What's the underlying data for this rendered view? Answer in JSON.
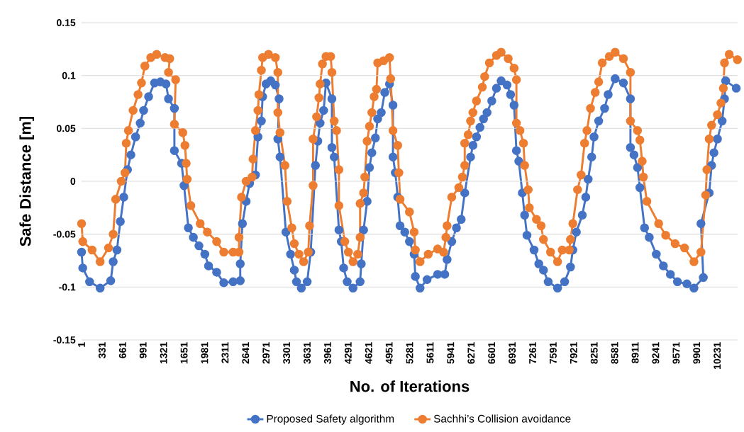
{
  "chart_data": {
    "type": "line",
    "xlabel": "No. of Iterations",
    "ylabel": "Safe Distance [m]",
    "xlim": [
      1,
      10560
    ],
    "ylim": [
      -0.15,
      0.15
    ],
    "xticks": [
      1,
      331,
      661,
      991,
      1321,
      1651,
      1981,
      2311,
      2641,
      2971,
      3301,
      3631,
      3961,
      4291,
      4621,
      4951,
      5281,
      5611,
      5941,
      6271,
      6601,
      6931,
      7261,
      7591,
      7921,
      8251,
      8581,
      8911,
      9241,
      9571,
      9901,
      10231
    ],
    "yticks": [
      -0.15,
      -0.1,
      -0.05,
      0,
      0.05,
      0.1,
      0.15
    ],
    "grid": "y",
    "legend": "bottom",
    "marker": "circle",
    "line_style": "solid",
    "series": [
      {
        "name": "Proposed Safety algorithm",
        "color": "#4472c4",
        "x": [
          1,
          20,
          130,
          300,
          470,
          510,
          570,
          625,
          680,
          740,
          795,
          870,
          945,
          1000,
          1080,
          1175,
          1270,
          1360,
          1400,
          1495,
          1495,
          1610,
          1650,
          1720,
          1800,
          1890,
          1985,
          2045,
          2175,
          2290,
          2440,
          2555,
          2555,
          2590,
          2650,
          2705,
          2800,
          2840,
          2895,
          2915,
          2970,
          3045,
          3120,
          3180,
          3160,
          3195,
          3275,
          3290,
          3365,
          3425,
          3460,
          3538,
          3632,
          3689,
          3765,
          3803,
          3840,
          3897,
          3935,
          4030,
          4030,
          4067,
          4143,
          4181,
          4219,
          4276,
          4370,
          4484,
          4503,
          4540,
          4597,
          4635,
          4673,
          4730,
          4767,
          4824,
          4881,
          4957,
          5013,
          5013,
          5051,
          5089,
          5127,
          5203,
          5278,
          5354,
          5373,
          5449,
          5562,
          5732,
          5846,
          5884,
          5959,
          6035,
          6111,
          6168,
          6262,
          6300,
          6357,
          6413,
          6470,
          6527,
          6603,
          6678,
          6754,
          6849,
          6906,
          6962,
          7000,
          7038,
          7095,
          7132,
          7170,
          7284,
          7360,
          7435,
          7511,
          7662,
          7776,
          7870,
          7908,
          7965,
          8060,
          8116,
          8154,
          8211,
          8249,
          8324,
          8419,
          8476,
          8589,
          8722,
          8835,
          8835,
          8892,
          8949,
          8987,
          9062,
          9138,
          9251,
          9365,
          9478,
          9592,
          9743,
          9857,
          10008,
          9970,
          10103,
          10141,
          10179,
          10235,
          10311,
          10349,
          10368,
          10538
        ],
        "values": [
          -0.067,
          -0.082,
          -0.095,
          -0.101,
          -0.094,
          -0.076,
          -0.065,
          -0.038,
          -0.015,
          0.011,
          0.025,
          0.042,
          0.055,
          0.067,
          0.08,
          0.093,
          0.094,
          0.092,
          0.078,
          0.069,
          0.029,
          0.017,
          -0.004,
          -0.044,
          -0.053,
          -0.061,
          -0.069,
          -0.08,
          -0.086,
          -0.096,
          -0.095,
          -0.094,
          -0.078,
          -0.04,
          -0.019,
          -0.002,
          0.006,
          0.042,
          0.057,
          0.08,
          0.092,
          0.095,
          0.091,
          0.078,
          0.04,
          0.023,
          null,
          -0.048,
          -0.069,
          -0.084,
          -0.095,
          -0.101,
          -0.095,
          -0.067,
          0.015,
          0.038,
          0.055,
          0.067,
          0.093,
          0.078,
          0.032,
          0.023,
          -0.046,
          -0.057,
          -0.082,
          -0.095,
          -0.101,
          -0.095,
          -0.078,
          -0.046,
          -0.019,
          0.013,
          0.027,
          0.041,
          0.059,
          0.065,
          0.084,
          0.092,
          0.072,
          0.023,
          0.008,
          -0.015,
          -0.042,
          -0.048,
          -0.057,
          -0.069,
          -0.09,
          -0.101,
          -0.093,
          -0.088,
          -0.088,
          -0.074,
          -0.057,
          -0.044,
          -0.036,
          -0.011,
          0.023,
          0.034,
          0.042,
          0.051,
          0.059,
          0.065,
          0.076,
          0.088,
          0.095,
          0.091,
          0.082,
          0.072,
          0.029,
          0.019,
          -0.011,
          -0.032,
          -0.051,
          -0.065,
          -0.078,
          -0.084,
          -0.095,
          -0.101,
          -0.095,
          -0.081,
          -0.065,
          -0.048,
          -0.032,
          -0.015,
          0.002,
          0.023,
          0.042,
          0.057,
          0.069,
          0.082,
          0.097,
          0.093,
          0.078,
          0.032,
          0.025,
          0.013,
          -0.006,
          -0.044,
          -0.053,
          -0.069,
          -0.08,
          -0.088,
          -0.095,
          -0.097,
          -0.101,
          -0.091,
          -0.04,
          -0.011,
          0.015,
          0.027,
          0.04,
          0.057,
          0.078,
          0.095,
          0.088
        ]
      },
      {
        "name": "Sachhi’s Collision avoidance",
        "color": "#ed7d31",
        "x": [
          1,
          20,
          170,
          300,
          435,
          510,
          550,
          640,
          700,
          720,
          755,
          830,
          910,
          965,
          1020,
          1115,
          1210,
          1345,
          1420,
          1400,
          1515,
          1495,
          1630,
          1665,
          1685,
          1700,
          1760,
          1910,
          2025,
          2175,
          2290,
          2440,
          2535,
          2535,
          2575,
          2650,
          2745,
          2760,
          2800,
          2840,
          2855,
          2895,
          2915,
          3010,
          3120,
          3160,
          3160,
          3195,
          3275,
          3310,
          3385,
          3425,
          3500,
          3575,
          3650,
          3670,
          3727,
          3727,
          3784,
          3822,
          3840,
          3878,
          3935,
          4010,
          4030,
          4067,
          4105,
          4143,
          4143,
          4238,
          4295,
          4370,
          4446,
          4484,
          4484,
          4540,
          4560,
          4597,
          4635,
          4673,
          4710,
          4748,
          4767,
          4862,
          4957,
          4976,
          5013,
          5089,
          5108,
          5127,
          5278,
          5354,
          5373,
          5449,
          5581,
          5732,
          5827,
          5865,
          5884,
          5959,
          6073,
          6130,
          6168,
          6168,
          6224,
          6262,
          6300,
          6357,
          6451,
          6489,
          6565,
          6679,
          6754,
          6868,
          6962,
          7000,
          7000,
          7057,
          7113,
          7132,
          7189,
          7208,
          7322,
          7397,
          7435,
          7549,
          7662,
          7738,
          7851,
          7870,
          7908,
          7984,
          8041,
          8097,
          8135,
          8192,
          8268,
          8324,
          8381,
          8495,
          8589,
          8722,
          8835,
          8835,
          8949,
          8987,
          9024,
          9043,
          9100,
          9289,
          9403,
          9554,
          9705,
          9857,
          9970,
          10046,
          10065,
          10103,
          10141,
          10235,
          10292,
          10330,
          10349,
          10425,
          10557
        ],
        "values": [
          -0.04,
          -0.057,
          -0.065,
          -0.076,
          -0.063,
          -0.05,
          -0.017,
          0,
          0.008,
          0.036,
          0.048,
          0.067,
          0.082,
          0.093,
          0.109,
          0.117,
          0.12,
          0.117,
          0.116,
          0.103,
          0.096,
          0.054,
          0.046,
          0.034,
          0.017,
          0.002,
          -0.023,
          -0.04,
          -0.048,
          -0.057,
          -0.067,
          -0.067,
          -0.067,
          -0.053,
          -0.015,
          0,
          0.004,
          0.021,
          0.048,
          0.067,
          0.082,
          0.105,
          0.117,
          0.12,
          0.117,
          0.103,
          0.065,
          0.046,
          0.015,
          -0.019,
          -0.044,
          -0.059,
          -0.069,
          -0.076,
          -0.067,
          -0.042,
          -0.004,
          0.04,
          0.061,
          0.079,
          0.092,
          0.111,
          0.118,
          0.118,
          0.103,
          0.057,
          0.048,
          0.011,
          -0.023,
          -0.057,
          -0.067,
          -0.076,
          -0.069,
          -0.053,
          -0.021,
          -0.011,
          0.004,
          0.038,
          0.052,
          0.065,
          0.08,
          0.087,
          0.112,
          0.114,
          0.117,
          0.097,
          0.048,
          0.034,
          0.008,
          -0.017,
          -0.029,
          -0.048,
          -0.065,
          -0.076,
          -0.069,
          -0.064,
          -0.067,
          -0.053,
          -0.042,
          -0.015,
          -0.006,
          0.004,
          0.015,
          0.036,
          0.044,
          0.057,
          0.065,
          0.076,
          0.089,
          0.099,
          0.112,
          0.119,
          0.122,
          0.116,
          0.107,
          0.096,
          0.055,
          0.048,
          0.036,
          0.015,
          -0.008,
          -0.025,
          -0.036,
          -0.042,
          -0.055,
          -0.067,
          -0.076,
          -0.065,
          -0.065,
          -0.055,
          -0.04,
          -0.008,
          0.006,
          0.036,
          0.048,
          0.069,
          0.084,
          0.094,
          0.112,
          0.118,
          0.122,
          0.116,
          0.103,
          0.057,
          0.048,
          0.039,
          0.019,
          0.004,
          -0.019,
          -0.04,
          -0.051,
          -0.059,
          -0.063,
          -0.076,
          -0.067,
          -0.013,
          0.011,
          0.04,
          0.053,
          0.063,
          0.074,
          0.088,
          0.112,
          0.12,
          0.115
        ]
      }
    ]
  }
}
